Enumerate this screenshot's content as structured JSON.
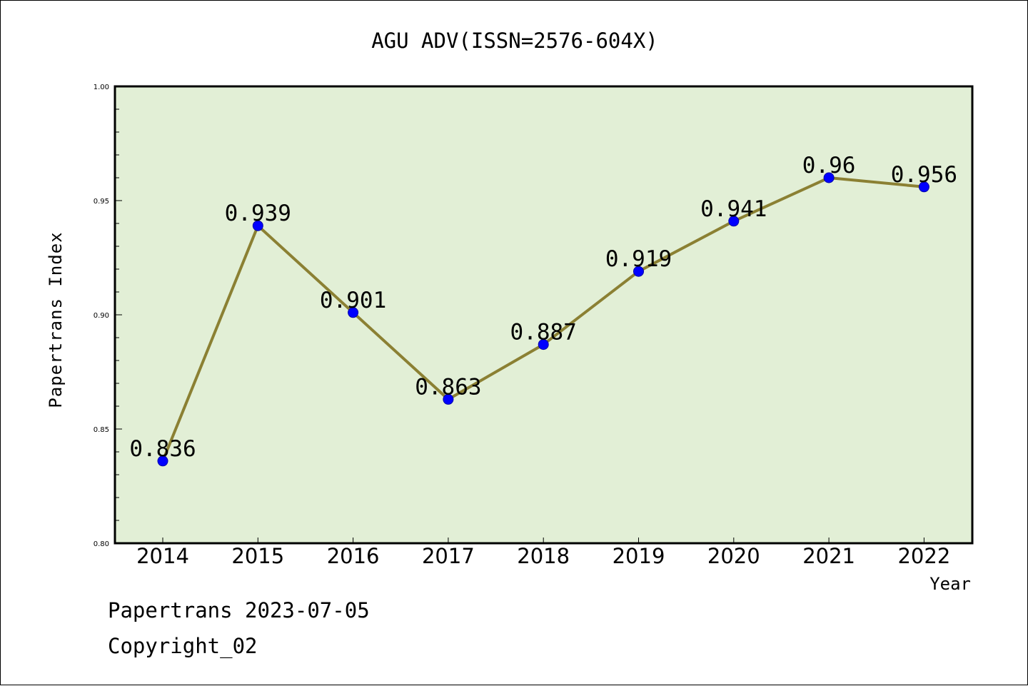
{
  "chart_data": {
    "type": "line",
    "title": "AGU ADV(ISSN=2576-604X)",
    "xlabel": "Year",
    "ylabel": "Papertrans Index",
    "categories": [
      "2014",
      "2015",
      "2016",
      "2017",
      "2018",
      "2019",
      "2020",
      "2021",
      "2022"
    ],
    "series": [
      {
        "values": [
          0.836,
          0.939,
          0.901,
          0.863,
          0.887,
          0.919,
          0.941,
          0.96,
          0.956
        ],
        "labels": [
          "0.836",
          "0.939",
          "0.901",
          "0.863",
          "0.887",
          "0.919",
          "0.941",
          "0.96",
          "0.956"
        ]
      }
    ],
    "ylim": [
      0.8,
      1.0
    ],
    "yticks": [
      "0.80",
      "0.85",
      "0.90",
      "0.95",
      "1.00"
    ],
    "grid": false,
    "legend": "none",
    "colors": {
      "plot_background": "#e2efd6",
      "line": "#8b8033",
      "marker": "#0000ff"
    }
  },
  "footer": {
    "line1": "Papertrans 2023-07-05",
    "line2": "Copyright_02"
  }
}
